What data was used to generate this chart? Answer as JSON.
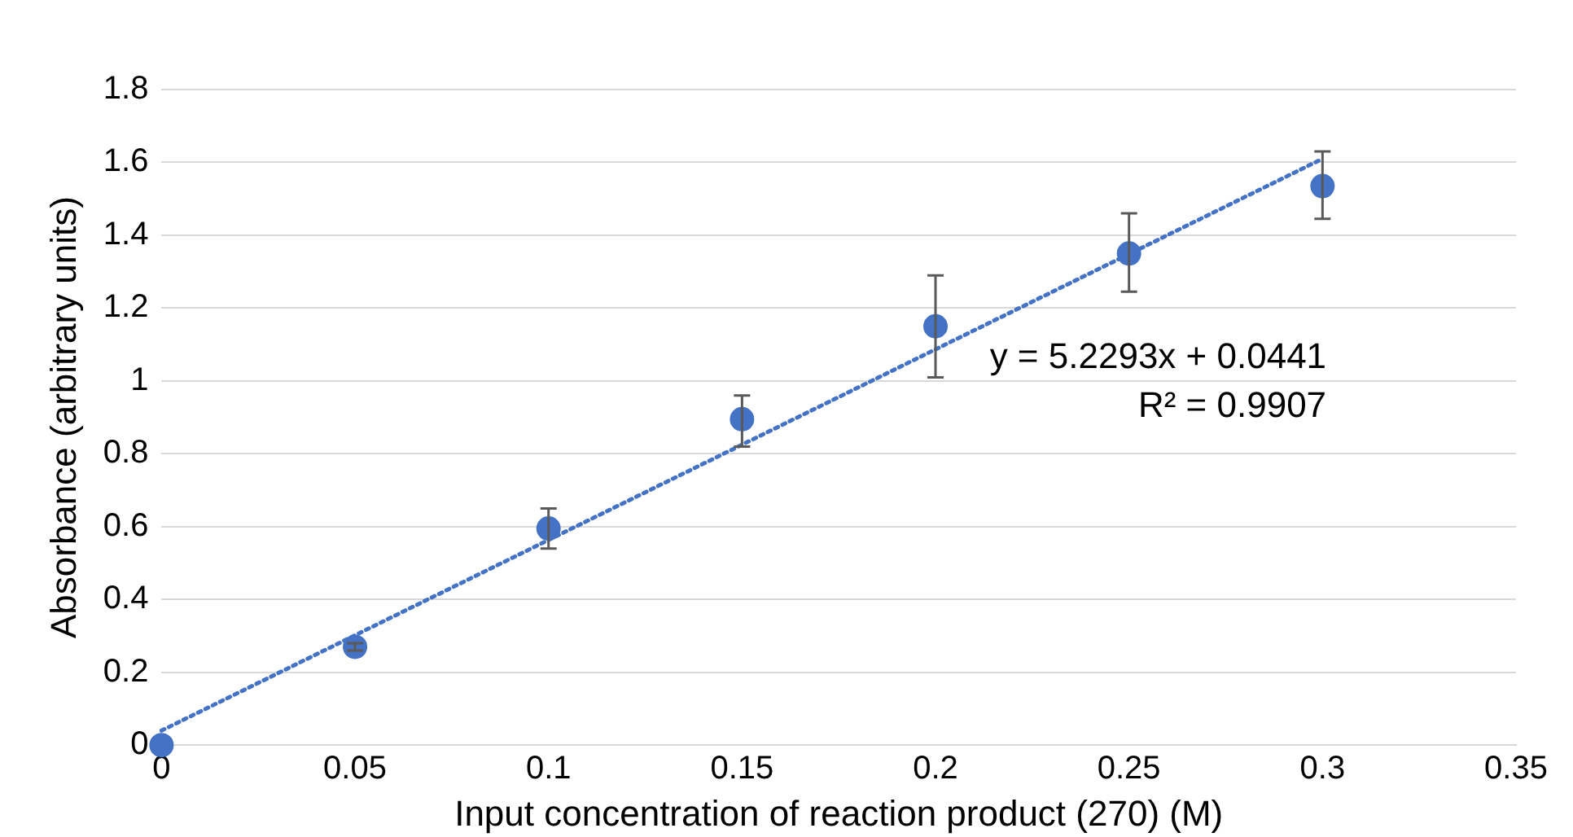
{
  "chart_data": {
    "type": "scatter",
    "xlabel": "Input concentration of reaction product (270) (M)",
    "ylabel": "Absorbance (arbitrary units)",
    "xlim": [
      0,
      0.35
    ],
    "xticks": [
      0,
      0.05,
      0.1,
      0.15,
      0.2,
      0.25,
      0.3,
      0.35
    ],
    "ylim": [
      0,
      1.8
    ],
    "yticks": [
      0,
      0.2,
      0.4,
      0.6,
      0.8,
      1,
      1.2,
      1.4,
      1.6,
      1.8
    ],
    "grid": "y",
    "legend": false,
    "marker": "circle",
    "series": [
      {
        "color": "#4472c4",
        "x": [
          0,
          0.05,
          0.1,
          0.15,
          0.2,
          0.25,
          0.3
        ],
        "values": [
          0,
          0.27,
          0.595,
          0.895,
          1.15,
          1.35,
          1.535
        ],
        "errors": [
          null,
          0.01,
          [
            0.54,
            0.65
          ],
          [
            0.82,
            0.96
          ],
          [
            1.01,
            1.29
          ],
          [
            1.245,
            1.46
          ],
          [
            1.445,
            1.63
          ]
        ]
      },
      {
        "type": "line",
        "color": "#4472c4",
        "line_style": "dotted",
        "marker": "none",
        "x": [
          0,
          0.3
        ],
        "values": [
          0.04,
          1.61
        ]
      }
    ],
    "annotations": [
      "y = 5.2293x + 0.0441",
      "R² = 0.9907"
    ]
  }
}
